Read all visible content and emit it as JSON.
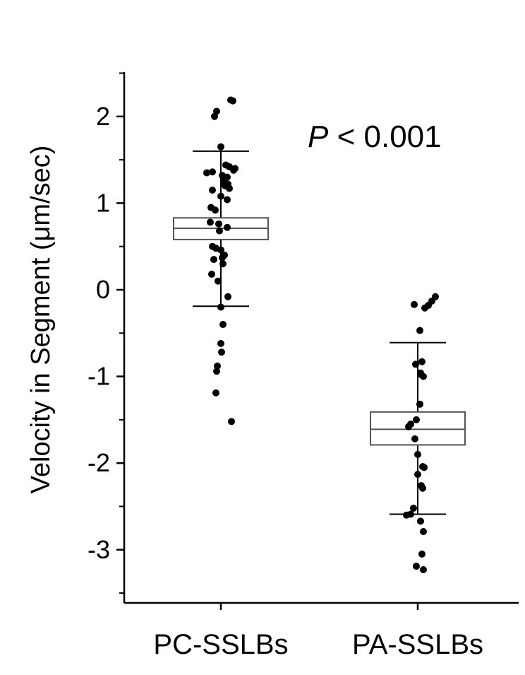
{
  "chart_data": {
    "type": "box",
    "ylabel": "Velocity in Segment (μm/sec)",
    "xlabel": "",
    "ylim": [
      -3.6,
      2.5
    ],
    "yticks": [
      2,
      1,
      0,
      -1,
      -2,
      -3
    ],
    "ytick_labels": [
      "2",
      "1",
      "0",
      "-1",
      "-2",
      "-3"
    ],
    "categories": [
      "PC-SSLBs",
      "PA-SSLBs"
    ],
    "annotation": {
      "prefix": "P",
      "text": " < 0.001"
    },
    "boxes": [
      {
        "category": "PC-SSLBs",
        "whisker_low": -0.19,
        "q1": 0.58,
        "median": 0.71,
        "q3": 0.83,
        "whisker_high": 1.6,
        "points": [
          [
            0.17,
            2.18
          ],
          [
            0.14,
            2.19
          ],
          [
            -0.06,
            2.06
          ],
          [
            -0.09,
            2.0
          ],
          [
            0.0,
            1.65
          ],
          [
            0.12,
            1.42
          ],
          [
            0.18,
            1.38
          ],
          [
            0.2,
            1.4
          ],
          [
            -0.2,
            1.35
          ],
          [
            -0.12,
            1.36
          ],
          [
            0.02,
            1.32
          ],
          [
            0.07,
            1.44
          ],
          [
            0.09,
            1.3
          ],
          [
            0.04,
            1.25
          ],
          [
            0.1,
            1.22
          ],
          [
            0.06,
            1.2
          ],
          [
            0.12,
            1.17
          ],
          [
            -0.12,
            1.15
          ],
          [
            0.0,
            1.08
          ],
          [
            0.09,
            1.04
          ],
          [
            -0.14,
            0.95
          ],
          [
            -0.08,
            0.92
          ],
          [
            -0.15,
            0.78
          ],
          [
            -0.03,
            0.76
          ],
          [
            0.09,
            0.72
          ],
          [
            -0.02,
            0.68
          ],
          [
            -0.12,
            0.5
          ],
          [
            0.0,
            0.46
          ],
          [
            -0.07,
            0.48
          ],
          [
            0.05,
            0.4
          ],
          [
            0.02,
            0.37
          ],
          [
            -0.1,
            0.35
          ],
          [
            0.03,
            0.3
          ],
          [
            -0.13,
            0.18
          ],
          [
            -0.04,
            0.1
          ],
          [
            0.1,
            -0.08
          ],
          [
            0.0,
            -0.2
          ],
          [
            0.03,
            -0.4
          ],
          [
            0.0,
            -0.62
          ],
          [
            0.01,
            -0.72
          ],
          [
            -0.05,
            -0.88
          ],
          [
            -0.06,
            -0.94
          ],
          [
            -0.07,
            -1.19
          ],
          [
            0.15,
            -1.52
          ]
        ]
      },
      {
        "category": "PA-SSLBs",
        "whisker_low": -2.59,
        "q1": -1.79,
        "median": -1.61,
        "q3": -1.41,
        "whisker_high": -0.61,
        "points": [
          [
            0.25,
            -0.08
          ],
          [
            0.2,
            -0.13
          ],
          [
            0.15,
            -0.18
          ],
          [
            0.1,
            -0.21
          ],
          [
            -0.05,
            -0.17
          ],
          [
            0.03,
            -0.47
          ],
          [
            0.06,
            -0.83
          ],
          [
            -0.03,
            -0.86
          ],
          [
            0.04,
            -0.96
          ],
          [
            0.05,
            -0.98
          ],
          [
            0.08,
            -1.0
          ],
          [
            0.03,
            -1.32
          ],
          [
            -0.1,
            -1.55
          ],
          [
            -0.13,
            -1.58
          ],
          [
            -0.02,
            -1.5
          ],
          [
            -0.04,
            -1.72
          ],
          [
            0.0,
            -1.9
          ],
          [
            0.07,
            -2.04
          ],
          [
            0.09,
            -2.05
          ],
          [
            0.0,
            -2.13
          ],
          [
            0.05,
            -2.26
          ],
          [
            0.07,
            -2.29
          ],
          [
            -0.06,
            -2.52
          ],
          [
            -0.1,
            -2.59
          ],
          [
            -0.16,
            -2.6
          ],
          [
            0.04,
            -2.67
          ],
          [
            0.08,
            -2.79
          ],
          [
            0.06,
            -3.05
          ],
          [
            -0.02,
            -3.19
          ],
          [
            0.08,
            -3.23
          ]
        ]
      }
    ]
  }
}
